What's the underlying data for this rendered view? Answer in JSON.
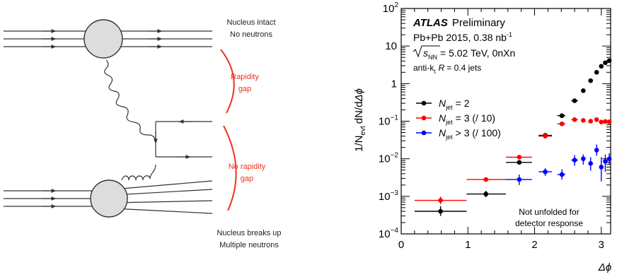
{
  "diagram": {
    "nucleus_intact": [
      "Nucleus intact",
      "No neutrons"
    ],
    "rapidity_gap": [
      "Rapidity",
      "gap"
    ],
    "no_rapidity_gap": [
      "No rapidity",
      "gap"
    ],
    "nucleus_breaks": [
      "Nucleus breaks up",
      "Multiple neutrons"
    ],
    "colors": {
      "annotation": "#ee3322",
      "line": "#333333",
      "nucleus_fill": "#dddddd"
    }
  },
  "legend_text": {
    "atlas": "ATLAS",
    "preliminary": "Preliminary",
    "dataset_prefix": "Pb+Pb 2015, 0.38 nb",
    "dataset_sup": "-1",
    "energy_s": "s",
    "energy_sub": "NN",
    "energy_rest": "= 5.02 TeV, 0nXn",
    "jets_prefix": "anti-k",
    "jets_sub": "t",
    "jets_R": "R",
    "jets_rest": "= 0.4 jets",
    "note": [
      "Not unfolded for",
      "detector response"
    ],
    "ylabel_a": "1/N",
    "ylabel_sub": "evt",
    "ylabel_b": "dN/d",
    "ylabel_c": "Δϕ",
    "xlabel": "Δϕ"
  },
  "chart_data": {
    "type": "scatter",
    "x_label": "Δϕ",
    "xlim": [
      0,
      3.14
    ],
    "ylim": [
      0.0001,
      100
    ],
    "y_scale": "log",
    "x_ticks": [
      0,
      1,
      2,
      3
    ],
    "y_ticks": [
      {
        "value": 100,
        "base": "10",
        "exp": "2"
      },
      {
        "value": 10,
        "base": "10",
        "exp": ""
      },
      {
        "value": 1,
        "base": "1",
        "exp": ""
      },
      {
        "value": 0.1,
        "base": "10",
        "exp": "−1"
      },
      {
        "value": 0.01,
        "base": "10",
        "exp": "−2"
      },
      {
        "value": 0.001,
        "base": "10",
        "exp": "−3"
      },
      {
        "value": 0.0001,
        "base": "10",
        "exp": "−4"
      }
    ],
    "legend_position": "center-left",
    "series": [
      {
        "name": "N",
        "name_sub": "jet",
        "name_rest": "= 2",
        "color": "#000000",
        "points": [
          {
            "x": 0.59,
            "xlo": 0.2,
            "xhi": 0.98,
            "y": 0.0004,
            "ylo": 0.0003,
            "yhi": 0.00055
          },
          {
            "x": 1.27,
            "xlo": 0.98,
            "xhi": 1.57,
            "y": 0.00115,
            "ylo": 0.00095,
            "yhi": 0.0014
          },
          {
            "x": 1.77,
            "xlo": 1.57,
            "xhi": 1.96,
            "y": 0.008,
            "ylo": 0.0073,
            "yhi": 0.0087
          },
          {
            "x": 2.16,
            "xlo": 2.06,
            "xhi": 2.26,
            "y": 0.042,
            "ylo": 0.039,
            "yhi": 0.045
          },
          {
            "x": 2.41,
            "xlo": 2.34,
            "xhi": 2.46,
            "y": 0.14,
            "ylo": 0.13,
            "yhi": 0.15
          },
          {
            "x": 2.6,
            "xlo": 2.55,
            "xhi": 2.65,
            "y": 0.35,
            "ylo": 0.33,
            "yhi": 0.37
          },
          {
            "x": 2.73,
            "xlo": 2.7,
            "xhi": 2.76,
            "y": 0.65
          },
          {
            "x": 2.84,
            "xlo": 2.81,
            "xhi": 2.87,
            "y": 1.2
          },
          {
            "x": 2.93,
            "xlo": 2.9,
            "xhi": 2.96,
            "y": 2.0
          },
          {
            "x": 3.0,
            "xlo": 2.98,
            "xhi": 3.02,
            "y": 2.9
          },
          {
            "x": 3.06,
            "xlo": 3.04,
            "xhi": 3.08,
            "y": 3.6
          },
          {
            "x": 3.12,
            "xlo": 3.1,
            "xhi": 3.14,
            "y": 4.1
          }
        ]
      },
      {
        "name": "N",
        "name_sub": "jet",
        "name_rest": "= 3 (/ 10)",
        "color": "#ff0000",
        "points": [
          {
            "x": 0.59,
            "xlo": 0.2,
            "xhi": 0.98,
            "y": 0.00078,
            "ylo": 0.00062,
            "yhi": 0.00098
          },
          {
            "x": 1.27,
            "xlo": 0.98,
            "xhi": 1.57,
            "y": 0.0028,
            "ylo": 0.0025,
            "yhi": 0.0031
          },
          {
            "x": 1.77,
            "xlo": 1.57,
            "xhi": 1.96,
            "y": 0.011,
            "ylo": 0.01,
            "yhi": 0.012
          },
          {
            "x": 2.16,
            "xlo": 2.06,
            "xhi": 2.26,
            "y": 0.04,
            "ylo": 0.037,
            "yhi": 0.043
          },
          {
            "x": 2.41,
            "xlo": 2.34,
            "xhi": 2.46,
            "y": 0.085,
            "ylo": 0.08,
            "yhi": 0.09
          },
          {
            "x": 2.6,
            "xlo": 2.55,
            "xhi": 2.65,
            "y": 0.11
          },
          {
            "x": 2.73,
            "xlo": 2.7,
            "xhi": 2.76,
            "y": 0.105
          },
          {
            "x": 2.84,
            "xlo": 2.81,
            "xhi": 2.87,
            "y": 0.1
          },
          {
            "x": 2.93,
            "xlo": 2.9,
            "xhi": 2.96,
            "y": 0.11
          },
          {
            "x": 3.0,
            "xlo": 2.98,
            "xhi": 3.02,
            "y": 0.095
          },
          {
            "x": 3.06,
            "xlo": 3.04,
            "xhi": 3.08,
            "y": 0.098
          },
          {
            "x": 3.12,
            "xlo": 3.1,
            "xhi": 3.14,
            "y": 0.096
          }
        ]
      },
      {
        "name": "N",
        "name_sub": "jet",
        "name_rest": "> 3 (/ 100)",
        "color": "#0000ff",
        "points": [
          {
            "x": 1.77,
            "xlo": 1.57,
            "xhi": 1.96,
            "y": 0.0028,
            "ylo": 0.002,
            "yhi": 0.0038
          },
          {
            "x": 2.16,
            "xlo": 2.06,
            "xhi": 2.26,
            "y": 0.0045,
            "ylo": 0.0035,
            "yhi": 0.0056
          },
          {
            "x": 2.41,
            "xlo": 2.34,
            "xhi": 2.46,
            "y": 0.0038,
            "ylo": 0.0028,
            "yhi": 0.0052
          },
          {
            "x": 2.6,
            "xlo": 2.55,
            "xhi": 2.65,
            "y": 0.0092,
            "ylo": 0.0065,
            "yhi": 0.0125
          },
          {
            "x": 2.73,
            "xlo": 2.7,
            "xhi": 2.76,
            "y": 0.01,
            "ylo": 0.007,
            "yhi": 0.013
          },
          {
            "x": 2.84,
            "xlo": 2.81,
            "xhi": 2.87,
            "y": 0.0075,
            "ylo": 0.0048,
            "yhi": 0.011
          },
          {
            "x": 2.93,
            "xlo": 2.9,
            "xhi": 2.96,
            "y": 0.017,
            "ylo": 0.012,
            "yhi": 0.024
          },
          {
            "x": 3.0,
            "xlo": 2.98,
            "xhi": 3.02,
            "y": 0.006,
            "ylo": 0.0025,
            "yhi": 0.011
          },
          {
            "x": 3.06,
            "xlo": 3.04,
            "xhi": 3.08,
            "y": 0.0085,
            "ylo": 0.0045,
            "yhi": 0.013
          },
          {
            "x": 3.12,
            "xlo": 3.1,
            "xhi": 3.14,
            "y": 0.01,
            "ylo": 0.007,
            "yhi": 0.014
          }
        ]
      }
    ]
  }
}
